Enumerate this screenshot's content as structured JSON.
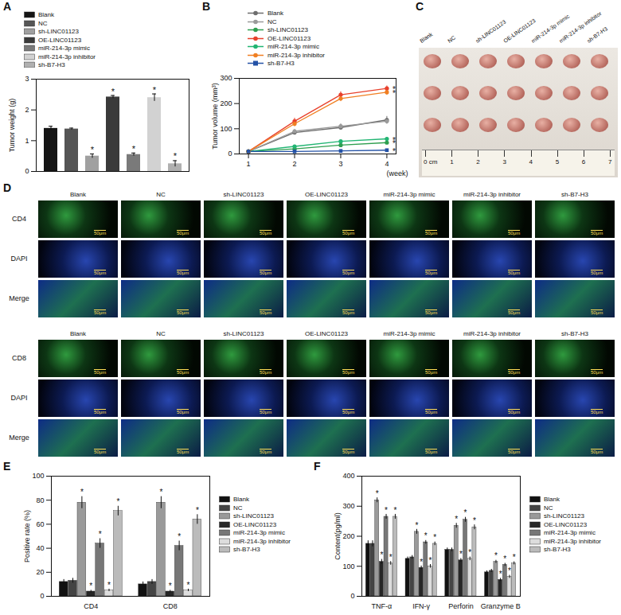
{
  "chart_data": [
    {
      "panel_label": "A",
      "type": "bar",
      "categories": [
        "Blank",
        "NC",
        "sh-LINC01123",
        "OE-LINC01123",
        "miR-214-3p mimic",
        "miR-214-3p inhibitor",
        "sh-B7-H3"
      ],
      "values": [
        1.4,
        1.38,
        0.5,
        2.42,
        0.55,
        2.4,
        0.25
      ],
      "errors": [
        0.07,
        0.03,
        0.07,
        0.05,
        0.05,
        0.12,
        0.1
      ],
      "colors": [
        "#151515",
        "#555555",
        "#a0a0a0",
        "#3a3a3a",
        "#7a7a7a",
        "#d2d2d2",
        "#b0b0b0"
      ],
      "y_label": "Tumor weight (g)",
      "ylim": [
        0,
        3
      ],
      "yticks": [
        0,
        1,
        2,
        3
      ],
      "tick_labels": "y",
      "legend": "top-left",
      "annotations": [
        {
          "category": "sh-LINC01123",
          "text": "*"
        },
        {
          "category": "OE-LINC01123",
          "text": "*"
        },
        {
          "category": "miR-214-3p mimic",
          "text": "*"
        },
        {
          "category": "miR-214-3p inhibitor",
          "text": "*"
        },
        {
          "category": "sh-B7-H3",
          "text": "*"
        }
      ]
    },
    {
      "panel_label": "B",
      "type": "line",
      "x": [
        1,
        2,
        3,
        4
      ],
      "xlim": [
        0.8,
        4.2
      ],
      "xticks": [
        1,
        2,
        3,
        4
      ],
      "x_label": "(week)",
      "y_label": "Tumor volume (mm³)",
      "ylim": [
        0,
        300
      ],
      "yticks": [
        0,
        100,
        200,
        300
      ],
      "legend": "top-left",
      "series": [
        {
          "name": "Blank",
          "color": "#6d6d6d",
          "marker": "circle",
          "values": [
            10,
            85,
            105,
            135
          ],
          "errors": [
            2,
            8,
            10,
            14
          ]
        },
        {
          "name": "NC",
          "color": "#9a9a9a",
          "marker": "circle",
          "values": [
            10,
            90,
            110,
            130
          ],
          "errors": [
            2,
            8,
            10,
            12
          ]
        },
        {
          "name": "sh-LINC01123",
          "color": "#2e9e4f",
          "marker": "circle",
          "values": [
            10,
            20,
            35,
            45
          ],
          "errors": [
            1,
            3,
            4,
            5
          ]
        },
        {
          "name": "OE-LINC01123",
          "color": "#e8412c",
          "marker": "circle",
          "values": [
            10,
            130,
            235,
            260
          ],
          "errors": [
            2,
            12,
            12,
            10
          ]
        },
        {
          "name": "miR-214-3p mimic",
          "color": "#22b573",
          "marker": "circle",
          "values": [
            10,
            30,
            50,
            60
          ],
          "errors": [
            1,
            3,
            4,
            5
          ]
        },
        {
          "name": "miR-214-3p inhibitor",
          "color": "#f07f22",
          "marker": "circle",
          "values": [
            10,
            120,
            220,
            245
          ],
          "errors": [
            2,
            12,
            12,
            12
          ]
        },
        {
          "name": "sh-B7-H3",
          "color": "#2452a6",
          "marker": "square",
          "values": [
            10,
            10,
            12,
            15
          ],
          "errors": [
            1,
            1,
            2,
            2
          ]
        }
      ],
      "annotations": [
        {
          "series": "OE-LINC01123",
          "x": 4,
          "text": "*"
        },
        {
          "series": "miR-214-3p inhibitor",
          "x": 4,
          "text": "*"
        },
        {
          "series": "miR-214-3p mimic",
          "x": 4,
          "text": "*"
        },
        {
          "series": "sh-LINC01123",
          "x": 4,
          "text": "*"
        },
        {
          "series": "sh-B7-H3",
          "x": 4,
          "text": "*"
        }
      ]
    },
    {
      "panel_label": "E",
      "type": "bar",
      "categories": [
        "CD4",
        "CD8"
      ],
      "y_label": "Positive rate (%)",
      "ylim": [
        0,
        100
      ],
      "yticks": [
        0,
        20,
        40,
        60,
        80,
        100
      ],
      "legend": "right",
      "series": [
        {
          "name": "Blank",
          "color": "#111111",
          "values": [
            12,
            10
          ],
          "errors": [
            2,
            2
          ]
        },
        {
          "name": "NC",
          "color": "#444444",
          "values": [
            13,
            12
          ],
          "errors": [
            2,
            2
          ]
        },
        {
          "name": "sh-LINC01123",
          "color": "#9a9a9a",
          "values": [
            78,
            78
          ],
          "errors": [
            5,
            5
          ]
        },
        {
          "name": "OE-LINC01123",
          "color": "#262626",
          "values": [
            4,
            4
          ],
          "errors": [
            1,
            1
          ]
        },
        {
          "name": "miR-214-3p mimic",
          "color": "#777777",
          "values": [
            44,
            42
          ],
          "errors": [
            4,
            4
          ]
        },
        {
          "name": "miR-214-3p inhibitor",
          "color": "#dddddd",
          "values": [
            5,
            5
          ],
          "errors": [
            1,
            1
          ]
        },
        {
          "name": "sh-B7-H3",
          "color": "#bbbbbb",
          "values": [
            71,
            64
          ],
          "errors": [
            4,
            4
          ]
        }
      ],
      "annotations": [
        {
          "series": "sh-LINC01123",
          "category": "CD4",
          "text": "*"
        },
        {
          "series": "OE-LINC01123",
          "category": "CD4",
          "text": "*"
        },
        {
          "series": "miR-214-3p mimic",
          "category": "CD4",
          "text": "*"
        },
        {
          "series": "miR-214-3p inhibitor",
          "category": "CD4",
          "text": "*"
        },
        {
          "series": "sh-B7-H3",
          "category": "CD4",
          "text": "*"
        },
        {
          "series": "sh-LINC01123",
          "category": "CD8",
          "text": "*"
        },
        {
          "series": "OE-LINC01123",
          "category": "CD8",
          "text": "*"
        },
        {
          "series": "miR-214-3p mimic",
          "category": "CD8",
          "text": "*"
        },
        {
          "series": "miR-214-3p inhibitor",
          "category": "CD8",
          "text": "*"
        },
        {
          "series": "sh-B7-H3",
          "category": "CD8",
          "text": "*"
        }
      ]
    },
    {
      "panel_label": "F",
      "type": "bar",
      "categories": [
        "TNF-α",
        "IFN-γ",
        "Perforin",
        "Granzyme B"
      ],
      "y_label": "Content(pg/ml)",
      "ylim": [
        0,
        400
      ],
      "yticks": [
        0,
        100,
        200,
        300,
        400
      ],
      "legend": "right",
      "series": [
        {
          "name": "Blank",
          "color": "#111111",
          "values": [
            175,
            125,
            155,
            80
          ],
          "errors": [
            10,
            6,
            6,
            5
          ]
        },
        {
          "name": "NC",
          "color": "#444444",
          "values": [
            175,
            130,
            155,
            85
          ],
          "errors": [
            10,
            6,
            6,
            5
          ]
        },
        {
          "name": "sh-LINC01123",
          "color": "#9a9a9a",
          "values": [
            320,
            215,
            235,
            115
          ],
          "errors": [
            8,
            8,
            8,
            5
          ]
        },
        {
          "name": "OE-LINC01123",
          "color": "#262626",
          "values": [
            115,
            95,
            120,
            55
          ],
          "errors": [
            8,
            6,
            6,
            5
          ]
        },
        {
          "name": "miR-214-3p mimic",
          "color": "#777777",
          "values": [
            265,
            180,
            255,
            105
          ],
          "errors": [
            8,
            6,
            8,
            5
          ]
        },
        {
          "name": "miR-214-3p inhibitor",
          "color": "#dddddd",
          "values": [
            110,
            100,
            125,
            65
          ],
          "errors": [
            6,
            6,
            6,
            5
          ]
        },
        {
          "name": "sh-B7-H3",
          "color": "#bbbbbb",
          "values": [
            265,
            175,
            230,
            110
          ],
          "errors": [
            8,
            6,
            8,
            5
          ]
        }
      ],
      "annotations": [
        {
          "series": "sh-LINC01123",
          "category": "TNF-α",
          "text": "*"
        },
        {
          "series": "OE-LINC01123",
          "category": "TNF-α",
          "text": "*"
        },
        {
          "series": "miR-214-3p mimic",
          "category": "TNF-α",
          "text": "*"
        },
        {
          "series": "miR-214-3p inhibitor",
          "category": "TNF-α",
          "text": "*"
        },
        {
          "series": "sh-B7-H3",
          "category": "TNF-α",
          "text": "*"
        },
        {
          "series": "sh-LINC01123",
          "category": "IFN-γ",
          "text": "*"
        },
        {
          "series": "OE-LINC01123",
          "category": "IFN-γ",
          "text": "*"
        },
        {
          "series": "miR-214-3p mimic",
          "category": "IFN-γ",
          "text": "*"
        },
        {
          "series": "miR-214-3p inhibitor",
          "category": "IFN-γ",
          "text": "*"
        },
        {
          "series": "sh-B7-H3",
          "category": "IFN-γ",
          "text": "*"
        },
        {
          "series": "sh-LINC01123",
          "category": "Perforin",
          "text": "*"
        },
        {
          "series": "OE-LINC01123",
          "category": "Perforin",
          "text": "*"
        },
        {
          "series": "miR-214-3p mimic",
          "category": "Perforin",
          "text": "*"
        },
        {
          "series": "miR-214-3p inhibitor",
          "category": "Perforin",
          "text": "*"
        },
        {
          "series": "sh-B7-H3",
          "category": "Perforin",
          "text": "*"
        },
        {
          "series": "sh-LINC01123",
          "category": "Granzyme B",
          "text": "*"
        },
        {
          "series": "OE-LINC01123",
          "category": "Granzyme B",
          "text": "*"
        },
        {
          "series": "miR-214-3p mimic",
          "category": "Granzyme B",
          "text": "*"
        },
        {
          "series": "miR-214-3p inhibitor",
          "category": "Granzyme B",
          "text": "*"
        },
        {
          "series": "sh-B7-H3",
          "category": "Granzyme B",
          "text": "*"
        }
      ]
    }
  ],
  "photo_panel": {
    "panel_label": "C",
    "columns": [
      "Blank",
      "NC",
      "sh-LINC01123",
      "OE-LINC01123",
      "miR-214-3p mimic",
      "miR-214-3p inhibitor",
      "sh-B7-H3"
    ],
    "ruler_labels": [
      "0 cm",
      "1",
      "2",
      "3",
      "4",
      "5",
      "6",
      "7"
    ]
  },
  "image_panel": {
    "panel_label": "D",
    "groups": [
      {
        "columns": [
          "Blank",
          "NC",
          "sh-LINC01123",
          "OE-LINC01123",
          "miR-214-3p mimic",
          "miR-214-3p inhibitor",
          "sh-B7-H3"
        ],
        "rows": [
          "CD4",
          "DAPI",
          "Merge"
        ]
      },
      {
        "columns": [
          "Blank",
          "NC",
          "sh-LINC01123",
          "OE-LINC01123",
          "miR-214-3p mimic",
          "miR-214-3p inhibitor",
          "sh-B7-H3"
        ],
        "rows": [
          "CD8",
          "DAPI",
          "Merge"
        ]
      }
    ],
    "scale_bar": "50μm"
  }
}
